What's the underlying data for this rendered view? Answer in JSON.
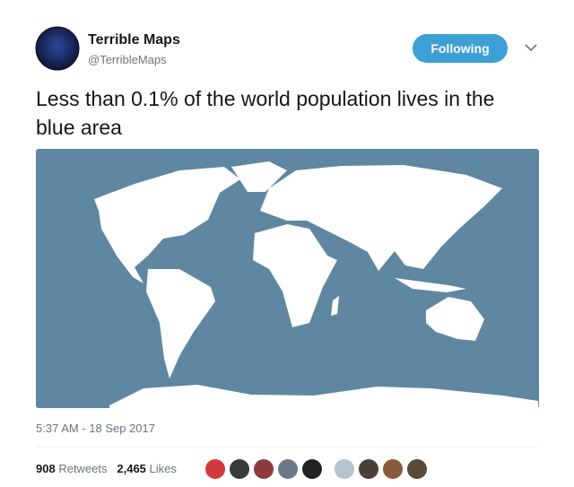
{
  "tweet": {
    "author_name": "Terrible Maps",
    "handle": "@TerribleMaps",
    "follow_button": "Following",
    "text": "Less than 0.1% of the world population lives in the blue area",
    "timestamp": "5:37 AM - 18 Sep 2017",
    "retweets": {
      "count": "908",
      "label": "Retweets"
    },
    "likes": {
      "count": "2,465",
      "label": "Likes"
    }
  }
}
